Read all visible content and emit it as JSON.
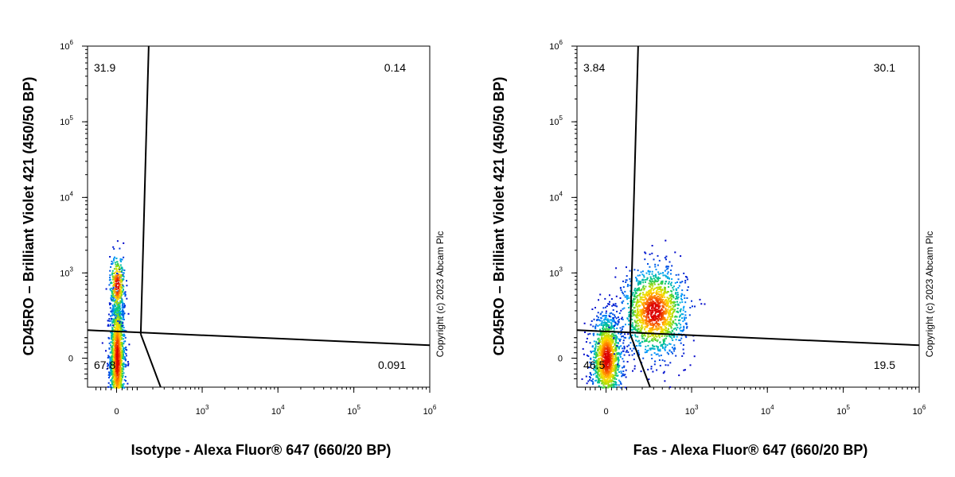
{
  "chart_data": [
    {
      "type": "scatter",
      "subtype": "flow-cytometry-density",
      "xlabel": "Isotype - Alexa Fluor® 647 (660/20 BP)",
      "ylabel": "CD45RO – Brilliant Violet 421 (450/50 BP)",
      "x_scale": "biexponential",
      "y_scale": "biexponential",
      "x_tick_labels": [
        "0",
        "10^3",
        "10^4",
        "10^5",
        "10^6"
      ],
      "y_tick_labels": [
        "0",
        "10^3",
        "10^4",
        "10^5",
        "10^6"
      ],
      "quadrants": {
        "top_left": "31.9",
        "top_right": "0.14",
        "bottom_left": "67.8",
        "bottom_right": "0.091"
      },
      "copyright": "Copyright (c) 2023 Abcam Plc",
      "populations": [
        {
          "name": "cluster",
          "x": 0,
          "y": 0,
          "sx": 0.06,
          "sy": 0.55,
          "n": 1600
        },
        {
          "name": "upper-tail",
          "x": 0,
          "y": 700,
          "sx": 0.06,
          "sy": 0.25,
          "n": 300
        }
      ]
    },
    {
      "type": "scatter",
      "subtype": "flow-cytometry-density",
      "xlabel": "Fas - Alexa Fluor® 647 (660/20 BP)",
      "ylabel": "CD45RO – Brilliant Violet 421 (450/50 BP)",
      "x_scale": "biexponential",
      "y_scale": "biexponential",
      "x_tick_labels": [
        "0",
        "10^3",
        "10^4",
        "10^5",
        "10^6"
      ],
      "y_tick_labels": [
        "0",
        "10^3",
        "10^4",
        "10^5",
        "10^6"
      ],
      "quadrants": {
        "top_left": "3.84",
        "top_right": "30.1",
        "bottom_left": "46.5",
        "bottom_right": "19.5"
      },
      "copyright": "Copyright (c) 2023 Abcam Plc",
      "populations": [
        {
          "name": "naive",
          "x": 0,
          "y": 0,
          "sx": 0.12,
          "sy": 0.35,
          "n": 1400
        },
        {
          "name": "memory",
          "x": 300,
          "y": 300,
          "sx": 0.25,
          "sy": 0.35,
          "n": 1500
        }
      ]
    }
  ]
}
